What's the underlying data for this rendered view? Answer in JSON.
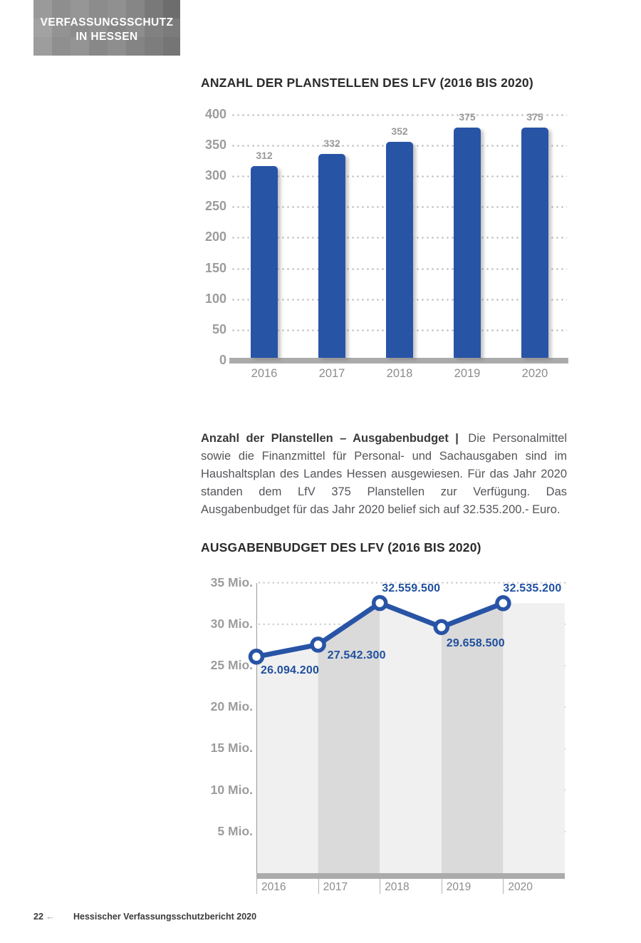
{
  "header": {
    "logo_line1": "VERFASSUNGSSCHUTZ",
    "logo_line2": "IN HESSEN"
  },
  "chart_data": [
    {
      "type": "bar",
      "title": "ANZAHL DER PLANSTELLEN DES LFV (2016 BIS 2020)",
      "categories": [
        "2016",
        "2017",
        "2018",
        "2019",
        "2020"
      ],
      "values": [
        312,
        332,
        352,
        375,
        375
      ],
      "ylim": [
        0,
        400
      ],
      "yticks": [
        400,
        350,
        300,
        250,
        200,
        150,
        100,
        50,
        0
      ],
      "grid": "dotted horizontal",
      "legend": "none",
      "bar_color": "#2854a6"
    },
    {
      "type": "line",
      "title": "AUSGABENBUDGET DES LFV (2016 BIS 2020)",
      "categories": [
        "2016",
        "2017",
        "2018",
        "2019",
        "2020"
      ],
      "values": [
        26094200,
        27542300,
        32559500,
        29658500,
        32535200
      ],
      "value_labels": [
        "26.094.200",
        "27.542.300",
        "32.559.500",
        "29.658.500",
        "32.535.200"
      ],
      "yticks_mio": [
        35,
        30,
        25,
        20,
        15,
        10,
        5
      ],
      "ytick_labels": [
        "35 Mio.",
        "30 Mio.",
        "25 Mio.",
        "20 Mio.",
        "15 Mio.",
        "10 Mio.",
        "5 Mio."
      ],
      "ylim": [
        0,
        35000000
      ],
      "grid": "dotted horizontal",
      "legend": "none",
      "area_band_colors": [
        "#f0f0f0",
        "#dadada"
      ]
    }
  ],
  "paragraph": {
    "lead": "Anzahl der Planstellen – Ausgabenbudget |",
    "body": "Die Personalmittel sowie die Finanzmittel für Personal- und Sachausgaben sind im Haushaltsplan des Landes Hessen ausgewiesen. Für das Jahr 2020 standen dem LfV 375 Planstellen zur Verfügung. Das Ausgabenbudget für das Jahr 2020 belief sich auf 32.535.200.- Euro."
  },
  "footer": {
    "page_number": "22",
    "back_arrow": "←",
    "report_title": "Hessischer Verfassungsschutzbericht 2020"
  },
  "colors": {
    "bar_blue": "#2854a6",
    "line_blue": "#2854a6",
    "point_label_blue": "#1f4f9e",
    "axis_gray": "#ababab",
    "tick_label_gray": "#9c9c9c",
    "band_light": "#f0f0f0",
    "band_dark": "#dadada"
  }
}
